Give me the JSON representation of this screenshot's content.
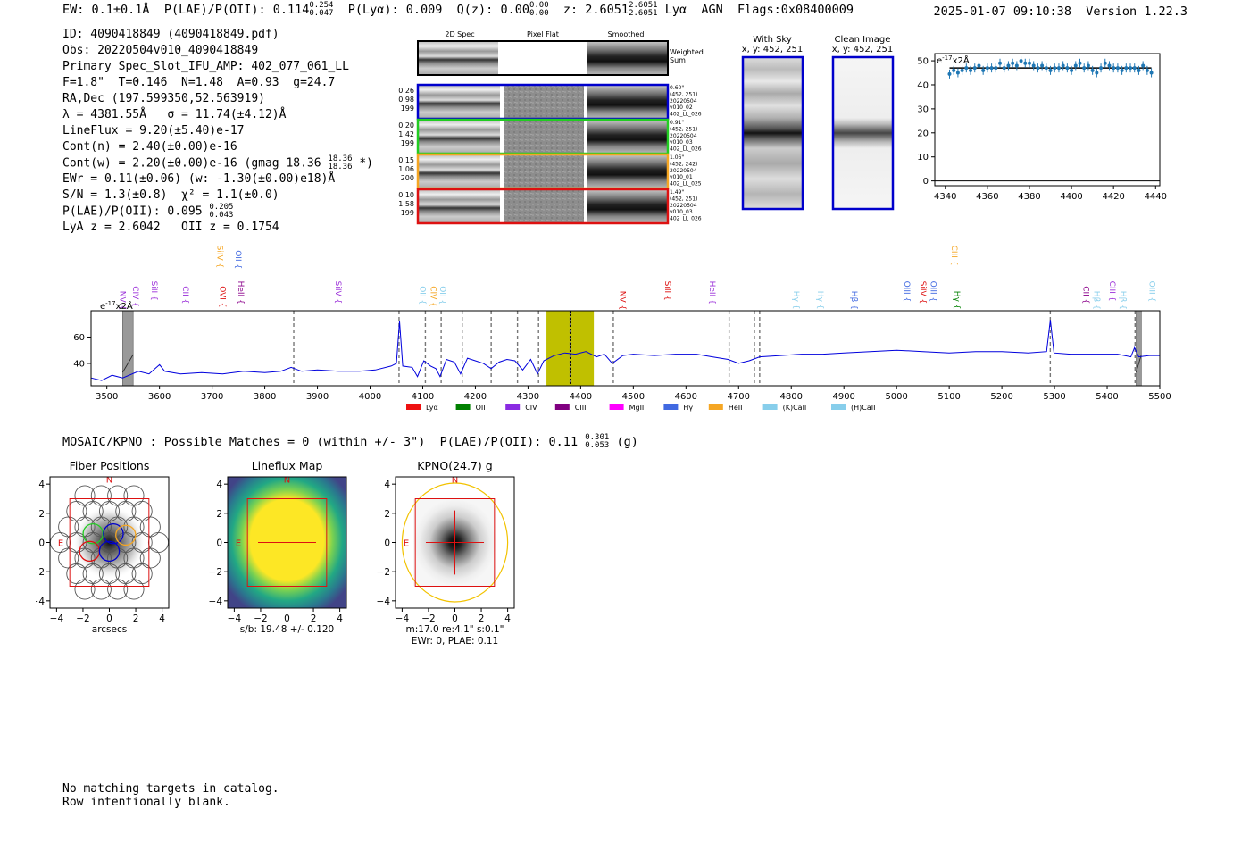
{
  "header": {
    "ew": "EW: 0.1±0.1Å",
    "plae_label": "P(LAE)/P(OII): 0.114",
    "plae_hi": "0.254",
    "plae_lo": "0.047",
    "plya": "P(Lyα): 0.009",
    "qz_label": "Q(z): 0.00",
    "qz_hi": "0.00",
    "qz_lo": "0.00",
    "z_label": "z: 2.6051",
    "z_hi": "2.6051",
    "z_lo": "2.6051",
    "class_tags": "Lyα  AGN  Flags:0x08400009",
    "timestamp": "2025-01-07 09:10:38  Version 1.22.3"
  },
  "info": {
    "id": "ID: 4090418849 (4090418849.pdf)",
    "obs": "Obs: 20220504v010_4090418849",
    "primary": "Primary Spec_Slot_IFU_AMP: 402_077_061_LL",
    "fibers": "F=1.8\"  T=0.146  N=1.48  A=0.93  g=24.7",
    "radec": "RA,Dec (197.599350,52.563919)",
    "lambda": "λ = 4381.55Å   σ = 11.74(±4.12)Å",
    "lineflux": "LineFlux = 9.20(±5.40)e-17",
    "contn": "Cont(n) = 2.40(±0.00)e-16",
    "contw_a": "Cont(w) = 2.20(±0.00)e-16 (gmag 18.36",
    "contw_hi": "18.36",
    "contw_lo": "18.36",
    "contw_b": "*)",
    "ewr": "EWr = 0.11(±0.06) (w: -1.30(±0.00)e18)Å",
    "sn": "S/N = 1.3(±0.8)  χ² = 1.1(±0.0)",
    "plae_a": "P(LAE)/P(OII): 0.095",
    "plae_hi": "0.205",
    "plae_lo": "0.043",
    "lya_z": "LyA z = 2.6042   OII z = 0.1754"
  },
  "cutouts": {
    "col_headers": [
      "2D Spec",
      "Pixel Flat",
      "Smoothed"
    ],
    "weighted_sum": [
      "Weighted",
      "Sum"
    ],
    "rows": [
      {
        "color": "#0000cc",
        "left": [
          "0.26",
          "0.98",
          "199"
        ],
        "right": [
          "0.60\"",
          "(452, 251)",
          "20220504",
          "v010_02",
          "402_LL_026"
        ]
      },
      {
        "color": "#22cc22",
        "left": [
          "0.20",
          "1.42",
          "199"
        ],
        "right": [
          "0.91\"",
          "(452, 251)",
          "20220504",
          "v010_03",
          "402_LL_026"
        ]
      },
      {
        "color": "#f5a623",
        "left": [
          "0.15",
          "1.06",
          "200"
        ],
        "right": [
          "1.06\"",
          "(452, 242)",
          "20220504",
          "v010_01",
          "402_LL_025"
        ]
      },
      {
        "color": "#dd1111",
        "left": [
          "0.10",
          "1.58",
          "199"
        ],
        "right": [
          "1.49\"",
          "(452, 251)",
          "20220504",
          "v010_03",
          "402_LL_026"
        ]
      }
    ],
    "with_sky_title": "With Sky",
    "with_sky_xy": "x, y: 452, 251",
    "clean_title": "Clean Image",
    "clean_xy": "x, y: 452, 251"
  },
  "mosaic": {
    "line_a": "MOSAIC/KPNO : Possible Matches = 0 (within +/- 3\")  P(LAE)/P(OII): 0.11",
    "hi": "0.301",
    "lo": "0.053",
    "line_b": "(g)",
    "panels": [
      {
        "title": "Fiber Positions",
        "xlabel": "arcsecs"
      },
      {
        "title": "Lineflux Map",
        "xlabel": "s/b: 19.48 +/- 0.120"
      },
      {
        "title": "KPNO(24.7) g",
        "xlabel": "m:17.0  re:4.1\"  s:0.1\"",
        "xlabel2": "EWr: 0, PLAE: 0.11"
      }
    ],
    "compass_n": "N",
    "compass_e": "E"
  },
  "footer": {
    "line1": "No matching targets in catalog.",
    "line2": "Row intentionally blank."
  },
  "chart_data": [
    {
      "type": "scatter",
      "xlim": [
        4335,
        4442
      ],
      "ylim": [
        -2,
        53
      ],
      "xticks": [
        4340,
        4360,
        4380,
        4400,
        4420,
        4440
      ],
      "yticks": [
        0,
        10,
        20,
        30,
        40,
        50
      ],
      "unit_label": "e$^{-17}$x2Å",
      "unit_base": "e",
      "unit_exp": "-17",
      "unit_tail": "x2Å",
      "x": [
        4342,
        4344,
        4346,
        4348,
        4350,
        4352,
        4354,
        4356,
        4358,
        4360,
        4362,
        4364,
        4366,
        4368,
        4370,
        4372,
        4374,
        4376,
        4378,
        4380,
        4382,
        4384,
        4386,
        4388,
        4390,
        4392,
        4394,
        4396,
        4398,
        4400,
        4402,
        4404,
        4406,
        4408,
        4410,
        4412,
        4414,
        4416,
        4418,
        4420,
        4422,
        4424,
        4426,
        4428,
        4430,
        4432,
        4434,
        4436,
        4438
      ],
      "y": [
        44.5,
        46,
        45,
        46,
        47,
        46,
        47,
        48,
        46,
        47,
        47,
        47,
        49,
        47,
        48,
        49,
        48,
        50,
        49,
        49,
        48,
        47,
        48,
        47,
        46,
        47,
        47,
        48,
        47,
        46,
        48,
        49,
        47,
        48,
        46,
        45,
        47,
        49,
        48,
        47,
        47,
        46,
        47,
        47,
        47,
        46,
        48,
        46,
        45
      ],
      "fit_y": 47,
      "zero_line": 0
    },
    {
      "type": "line",
      "xlim": [
        3470,
        5500
      ],
      "ylim": [
        23,
        80
      ],
      "xticks": [
        3500,
        3600,
        3700,
        3800,
        3900,
        4000,
        4100,
        4200,
        4300,
        4400,
        4500,
        4600,
        4700,
        4800,
        4900,
        5000,
        5100,
        5200,
        5300,
        5400,
        5500
      ],
      "yticks": [
        40,
        60
      ],
      "unit_base": "e",
      "unit_exp": "-17",
      "unit_tail": "x2Å",
      "highlight_band": [
        4335,
        4425
      ],
      "dashed_lines": [
        3855,
        4055,
        4105,
        4135,
        4175,
        4230,
        4280,
        4320,
        4380,
        4462,
        4682,
        4730,
        4740,
        5292,
        5453
      ],
      "masked_bands": [
        [
          3530,
          3550
        ],
        [
          5455,
          5465
        ]
      ],
      "spectrum": [
        [
          3470,
          29
        ],
        [
          3490,
          27
        ],
        [
          3510,
          31
        ],
        [
          3530,
          29
        ],
        [
          3560,
          34
        ],
        [
          3580,
          32
        ],
        [
          3600,
          39
        ],
        [
          3610,
          34
        ],
        [
          3640,
          32
        ],
        [
          3680,
          33
        ],
        [
          3720,
          32
        ],
        [
          3760,
          34
        ],
        [
          3800,
          33
        ],
        [
          3830,
          34
        ],
        [
          3850,
          37
        ],
        [
          3870,
          34
        ],
        [
          3900,
          35
        ],
        [
          3940,
          34
        ],
        [
          3980,
          34
        ],
        [
          4010,
          35
        ],
        [
          4040,
          38
        ],
        [
          4050,
          40
        ],
        [
          4056,
          72
        ],
        [
          4062,
          38
        ],
        [
          4080,
          37
        ],
        [
          4090,
          30
        ],
        [
          4102,
          42
        ],
        [
          4115,
          38
        ],
        [
          4125,
          36
        ],
        [
          4133,
          30
        ],
        [
          4145,
          43
        ],
        [
          4160,
          41
        ],
        [
          4172,
          32
        ],
        [
          4185,
          44
        ],
        [
          4200,
          42
        ],
        [
          4215,
          40
        ],
        [
          4230,
          36
        ],
        [
          4245,
          41
        ],
        [
          4260,
          43
        ],
        [
          4275,
          42
        ],
        [
          4290,
          35
        ],
        [
          4305,
          43
        ],
        [
          4318,
          32
        ],
        [
          4330,
          42
        ],
        [
          4350,
          46
        ],
        [
          4370,
          48
        ],
        [
          4390,
          47
        ],
        [
          4410,
          49
        ],
        [
          4430,
          45
        ],
        [
          4445,
          47
        ],
        [
          4460,
          40
        ],
        [
          4480,
          46
        ],
        [
          4500,
          47
        ],
        [
          4540,
          46
        ],
        [
          4580,
          47
        ],
        [
          4620,
          47
        ],
        [
          4650,
          45
        ],
        [
          4680,
          43
        ],
        [
          4700,
          40
        ],
        [
          4720,
          42
        ],
        [
          4740,
          45
        ],
        [
          4780,
          46
        ],
        [
          4820,
          47
        ],
        [
          4860,
          47
        ],
        [
          4900,
          48
        ],
        [
          4950,
          49
        ],
        [
          5000,
          50
        ],
        [
          5050,
          49
        ],
        [
          5100,
          48
        ],
        [
          5150,
          49
        ],
        [
          5200,
          49
        ],
        [
          5250,
          48
        ],
        [
          5285,
          49
        ],
        [
          5292,
          73
        ],
        [
          5299,
          48
        ],
        [
          5330,
          47
        ],
        [
          5380,
          47
        ],
        [
          5420,
          47
        ],
        [
          5445,
          45
        ],
        [
          5452,
          52
        ],
        [
          5460,
          45
        ],
        [
          5480,
          46
        ],
        [
          5500,
          46
        ]
      ],
      "line_labels": [
        {
          "name": "NV",
          "x": 3520,
          "color": "#9b30d9",
          "row": "low"
        },
        {
          "name": "CIV",
          "x": 3545,
          "color": "#9b30d9",
          "row": "low"
        },
        {
          "name": "SiII",
          "x": 3580,
          "color": "#9b30d9",
          "row": "low"
        },
        {
          "name": "CII",
          "x": 3640,
          "color": "#9b30d9",
          "row": "low"
        },
        {
          "name": "SiIV",
          "x": 3705,
          "color": "#f5a623",
          "row": "high"
        },
        {
          "name": "OVI",
          "x": 3710,
          "color": "#dd1111",
          "row": "low"
        },
        {
          "name": "OII",
          "x": 3740,
          "color": "#4169e1",
          "row": "high"
        },
        {
          "name": "HeII",
          "x": 3745,
          "color": "#8b008b",
          "row": "low"
        },
        {
          "name": "SiIV",
          "x": 3930,
          "color": "#9b30d9",
          "row": "low"
        },
        {
          "name": "OII",
          "x": 4090,
          "color": "#87ceeb",
          "row": "low"
        },
        {
          "name": "CIV",
          "x": 4110,
          "color": "#f5a623",
          "row": "low"
        },
        {
          "name": "OII",
          "x": 4128,
          "color": "#87ceeb",
          "row": "low"
        },
        {
          "name": "NV",
          "x": 4470,
          "color": "#dd1111",
          "row": "low"
        },
        {
          "name": "SiII",
          "x": 4555,
          "color": "#dd1111",
          "row": "low"
        },
        {
          "name": "HeII",
          "x": 4640,
          "color": "#9b30d9",
          "row": "low"
        },
        {
          "name": "Hγ",
          "x": 4800,
          "color": "#87ceeb",
          "row": "low"
        },
        {
          "name": "Hγ",
          "x": 4845,
          "color": "#87ceeb",
          "row": "low"
        },
        {
          "name": "Hβ",
          "x": 4910,
          "color": "#4169e1",
          "row": "low"
        },
        {
          "name": "OIII",
          "x": 5010,
          "color": "#4169e1",
          "row": "low"
        },
        {
          "name": "SiIV",
          "x": 5040,
          "color": "#dd1111",
          "row": "low"
        },
        {
          "name": "OIII",
          "x": 5060,
          "color": "#4169e1",
          "row": "low"
        },
        {
          "name": "CIII",
          "x": 5100,
          "color": "#f5a623",
          "row": "high"
        },
        {
          "name": "Hγ",
          "x": 5105,
          "color": "#008000",
          "row": "low"
        },
        {
          "name": "CII",
          "x": 5350,
          "color": "#8b008b",
          "row": "low"
        },
        {
          "name": "Hβ",
          "x": 5370,
          "color": "#87ceeb",
          "row": "low"
        },
        {
          "name": "CIII",
          "x": 5400,
          "color": "#9b30d9",
          "row": "low"
        },
        {
          "name": "Hβ",
          "x": 5420,
          "color": "#87ceeb",
          "row": "low"
        },
        {
          "name": "OIII",
          "x": 5475,
          "color": "#87ceeb",
          "row": "low"
        }
      ],
      "legend": [
        {
          "name": "Lyα",
          "color": "#ee1111"
        },
        {
          "name": "OII",
          "color": "#008000"
        },
        {
          "name": "CIV",
          "color": "#8a2be2"
        },
        {
          "name": "CIII",
          "color": "#800080"
        },
        {
          "name": "MgII",
          "color": "#ff00ff"
        },
        {
          "name": "Hγ",
          "color": "#4169e1"
        },
        {
          "name": "HeII",
          "color": "#f5a623"
        },
        {
          "name": "(K)CaII",
          "color": "#87ceeb"
        },
        {
          "name": "(H)CaII",
          "color": "#87ceeb"
        }
      ]
    },
    {
      "type": "scatter",
      "xlim": [
        -4.5,
        4.5
      ],
      "ylim": [
        -4.5,
        4.5
      ],
      "ticks": [
        -4,
        -2,
        0,
        2,
        4
      ],
      "panels": 3
    }
  ]
}
